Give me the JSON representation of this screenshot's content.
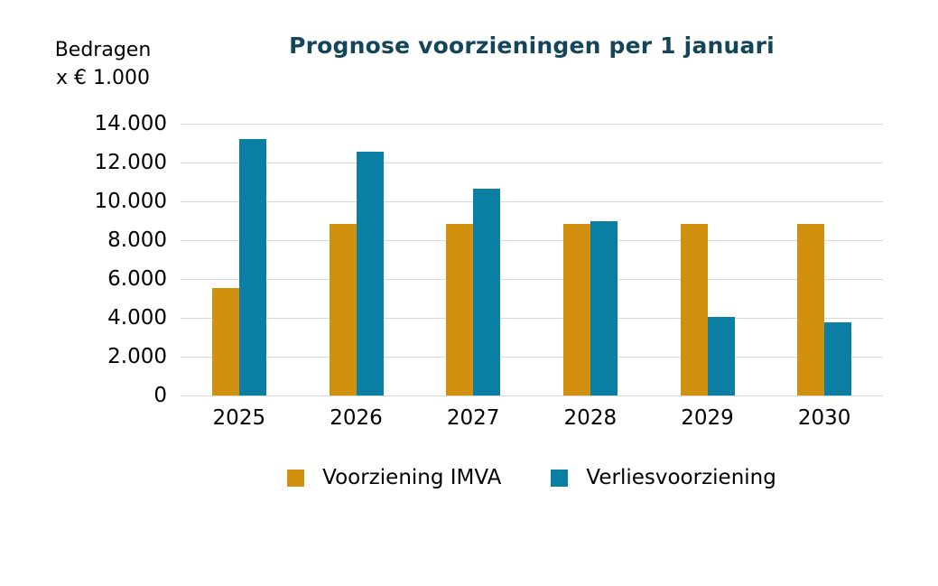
{
  "chart_data": {
    "type": "bar",
    "title": "Prognose voorzieningen per 1 januari",
    "unit_label": [
      "Bedragen",
      "x € 1.000"
    ],
    "categories": [
      "2025",
      "2026",
      "2027",
      "2028",
      "2029",
      "2030"
    ],
    "series": [
      {
        "name": "Voorziening IMVA",
        "color": "#D1910E",
        "values": [
          5550,
          8850,
          8850,
          8850,
          8850,
          8850
        ]
      },
      {
        "name": "Verliesvoorziening",
        "color": "#0A7FA3",
        "values": [
          13200,
          12550,
          10650,
          9000,
          4050,
          3750
        ]
      }
    ],
    "xlabel": "",
    "ylabel": "Bedragen x € 1.000",
    "ylim": [
      0,
      14000
    ],
    "ytick_step": 2000,
    "ytick_labels": [
      "0",
      "2.000",
      "4.000",
      "6.000",
      "8.000",
      "10.000",
      "12.000",
      "14.000"
    ],
    "grid": true,
    "legend_position": "bottom"
  },
  "colors": {
    "title": "#14465A",
    "gridline": "#D9D9D9",
    "text": "#000000",
    "series_imva": "#D1910E",
    "series_verlies": "#0A7FA3"
  }
}
